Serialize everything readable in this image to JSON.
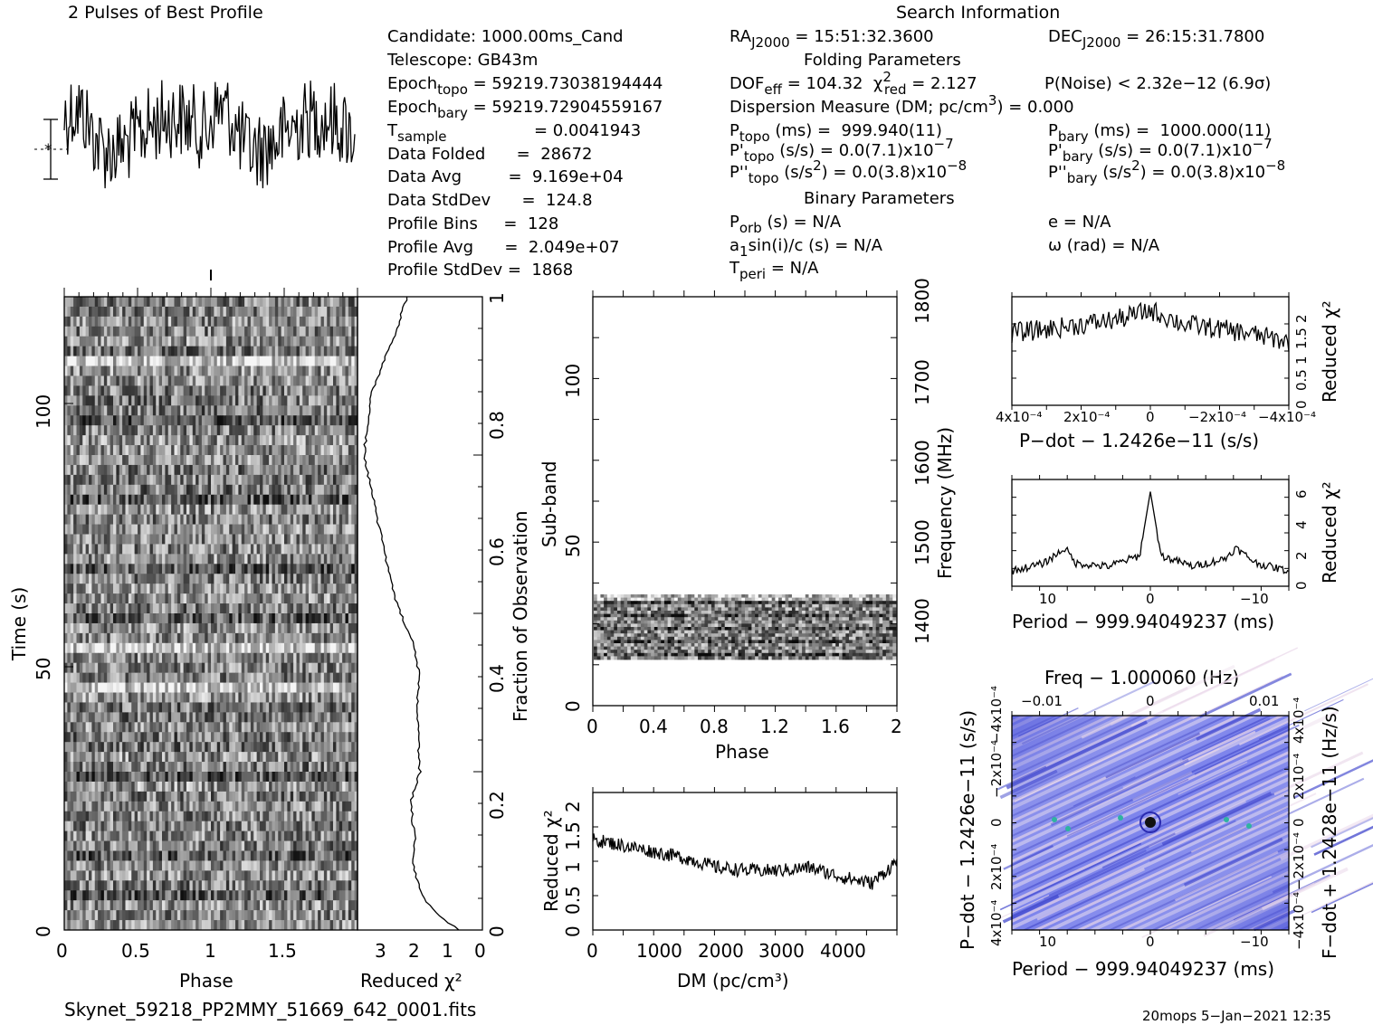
{
  "header": {
    "profile_title": "2 Pulses of Best Profile",
    "search_title": "Search Information",
    "folding_title": "Folding Parameters",
    "binary_title": "Binary Parameters"
  },
  "info": {
    "candidate": "Candidate:  1000.00ms_Cand",
    "telescope": "Telescope:  GB43m",
    "epoch_topo_lbl": "Epoch",
    "epoch_topo_sub": "topo",
    "epoch_topo_val": " = 59219.73038194444",
    "epoch_bary_lbl": "Epoch",
    "epoch_bary_sub": "bary",
    "epoch_bary_val": " = 59219.72904559167",
    "tsample_lbl": "T",
    "tsample_sub": "sample",
    "tsample_val": "=  0.0041943",
    "data_folded": "Data Folded      =  28672",
    "data_avg": "Data Avg         =  9.169e+04",
    "data_std": "Data StdDev      =  124.8",
    "profile_bins": "Profile Bins     =  128",
    "profile_avg": "Profile Avg      =  2.049e+07",
    "profile_std": "Profile StdDev =  1868",
    "ra_lbl": "RA",
    "ra_sub": "J2000",
    "ra_val": " = 15:51:32.3600",
    "dec_lbl": "DEC",
    "dec_sub": "J2000",
    "dec_val": " = 26:15:31.7800",
    "dof": "DOF",
    "dof_sub": "eff",
    "dof_val": " = 104.32  ",
    "chi": "χ",
    "chi_sup": "2",
    "chi_sub": "red",
    "chi_val": " = 2.127",
    "pnoise": "P(Noise) < 2.32e−12  (6.9σ)",
    "dm_line": "Dispersion Measure (DM; pc/cm",
    "dm_sup": "3",
    "dm_val": ") = 0.000",
    "ptopo_lbl": "P",
    "ptopo_sub": "topo",
    "ptopo_val": " (ms) =  999.940(11)",
    "pbary_lbl": "P",
    "pbary_sub": "bary",
    "pbary_val": " (ms) =  1000.000(11)",
    "pdtopo_lbl": "P'",
    "pdtopo_sub": "topo",
    "pdtopo_val": " (s/s) = 0.0(7.1)x10",
    "pdtopo_exp": "−7",
    "pdbary_lbl": "P'",
    "pdbary_sub": "bary",
    "pdbary_val": " (s/s) = 0.0(7.1)x10",
    "pdbary_exp": "−7",
    "pddtopo_lbl": "P''",
    "pddtopo_sub": "topo",
    "pddtopo_val": " (s/s",
    "pddtopo_sq": "2",
    "pddtopo_val2": ") = 0.0(3.8)x10",
    "pddtopo_exp": "−8",
    "pddbary_lbl": "P''",
    "pddbary_sub": "bary",
    "pddbary_val": " (s/s",
    "pddbary_sq": "2",
    "pddbary_val2": ") = 0.0(3.8)x10",
    "pddbary_exp": "−8",
    "porb_lbl": "P",
    "porb_sub": "orb",
    "porb_val": " (s) = N/A",
    "ecc": "e = N/A",
    "a1_lbl": "a",
    "a1_sub": "1",
    "a1_val": "sin(i)/c (s) = N/A",
    "omega": "ω (rad) = N/A",
    "tperi_lbl": "T",
    "tperi_sub": "peri",
    "tperi_val": " = N/A"
  },
  "footer": {
    "filename": "Skynet_59218_PP2MMY_51669_642_0001.fits",
    "stamp": "20mops  5−Jan−2021 12:35"
  },
  "colors": {
    "ink": "#000000",
    "ppdot_base": "#6f75e8",
    "ppdot_light": "#e6d8ea"
  },
  "chart_data": [
    {
      "id": "profile",
      "type": "line",
      "title": "2 Pulses of Best Profile",
      "xlabel": "",
      "ylabel": "",
      "x_range": [
        0,
        2
      ],
      "n_bins": 128,
      "peaks_phase": [
        0.05,
        0.55
      ]
    },
    {
      "id": "time-phase",
      "type": "heatmap",
      "xlabel": "Phase",
      "ylabel": "Time (s)",
      "x_ticks": [
        "0",
        "0.5",
        "1",
        "1.5"
      ],
      "y_ticks": [
        "0",
        "50",
        "100"
      ],
      "xlim": [
        0,
        2
      ],
      "ylim": [
        0,
        120
      ],
      "right_ylabel": "Fraction of Observation",
      "right_ticks": [
        "0",
        "0.2",
        "0.4",
        "0.6",
        "0.8",
        "1"
      ]
    },
    {
      "id": "time-chi",
      "type": "line",
      "xlabel": "Reduced χ²",
      "x_ticks": [
        "3",
        "2",
        "1",
        "0"
      ],
      "xlim": [
        3.8,
        0
      ],
      "y": [
        0,
        0.02,
        0.05,
        0.1,
        0.15,
        0.2,
        0.25,
        0.3,
        0.35,
        0.4,
        0.45,
        0.5,
        0.55,
        0.6,
        0.65,
        0.7,
        0.75,
        0.8,
        0.85,
        0.9,
        0.95,
        1.0
      ],
      "x": [
        0.7,
        1.3,
        1.8,
        2.1,
        2.05,
        2.2,
        1.9,
        1.95,
        2.0,
        1.9,
        2.1,
        2.5,
        2.8,
        3.0,
        3.2,
        3.4,
        3.6,
        3.5,
        3.35,
        3.0,
        2.6,
        2.3
      ]
    },
    {
      "id": "subband-phase",
      "type": "heatmap",
      "xlabel": "Phase",
      "ylabel": "Sub-band",
      "x_ticks": [
        "0",
        "0.4",
        "0.8",
        "1.2",
        "1.6",
        "2"
      ],
      "y_ticks": [
        "0",
        "50",
        "100"
      ],
      "xlim": [
        0,
        2
      ],
      "ylim": [
        0,
        128
      ],
      "filled_subbands": [
        14,
        35
      ],
      "right_ylabel": "Frequency (MHz)",
      "right_ticks": [
        "1400",
        "1500",
        "1600",
        "1700",
        "1800"
      ]
    },
    {
      "id": "dm-chi",
      "type": "line",
      "xlabel": "DM (pc/cm³)",
      "ylabel": "Reduced χ²",
      "x_ticks": [
        "0",
        "1000",
        "2000",
        "3000",
        "4000"
      ],
      "y_ticks": [
        "0",
        "0.5",
        "1",
        "1.5",
        "2"
      ],
      "xlim": [
        0,
        4900
      ],
      "ylim": [
        0,
        2.2
      ],
      "x": [
        0,
        500,
        1000,
        1500,
        2000,
        2500,
        3000,
        3500,
        4000,
        4500,
        4900
      ],
      "y": [
        1.45,
        1.35,
        1.25,
        1.15,
        1.0,
        0.95,
        0.95,
        1.0,
        0.85,
        0.75,
        1.1
      ]
    },
    {
      "id": "pdot-chi",
      "type": "line",
      "xlabel": "P−dot − 1.2426e−11 (s/s)",
      "ylabel": "Reduced χ²",
      "x_ticks": [
        "4x10⁻⁴",
        "2x10⁻⁴",
        "0",
        "−2x10⁻⁴",
        "−4x10⁻⁴"
      ],
      "y_ticks": [
        "0",
        "0.5",
        "1",
        "1.5",
        "2"
      ],
      "xlim": [
        0.00043,
        -0.00043
      ],
      "ylim": [
        0,
        2.4
      ],
      "x": [
        0.00043,
        0.0003,
        0.0002,
        0.0001,
        0,
        -0.0001,
        -0.0002,
        -0.0003,
        -0.00043
      ],
      "y": [
        1.6,
        1.7,
        1.8,
        1.9,
        2.1,
        1.8,
        1.7,
        1.6,
        1.4
      ]
    },
    {
      "id": "period-chi",
      "type": "line",
      "xlabel": "Period − 999.94049237 (ms)",
      "ylabel": "Reduced χ²",
      "x_ticks": [
        "10",
        "0",
        "−10"
      ],
      "y_ticks": [
        "0",
        "2",
        "4",
        "6"
      ],
      "xlim": [
        13,
        -13
      ],
      "ylim": [
        0,
        7
      ],
      "x": [
        13,
        10,
        9,
        8,
        7,
        4,
        1,
        0,
        -1,
        -4,
        -7,
        -8,
        -9,
        -10,
        -13
      ],
      "y": [
        1.0,
        1.5,
        2.0,
        2.5,
        1.5,
        1.3,
        2.0,
        6.2,
        2.0,
        1.3,
        1.8,
        2.5,
        2.0,
        1.5,
        1.0
      ]
    },
    {
      "id": "p-pdot",
      "type": "heatmap",
      "title": "Freq − 1.000060 (Hz)",
      "xlabel": "Period − 999.94049237 (ms)",
      "ylabel": "P−dot − 1.2426e−11 (s/s)",
      "right_ylabel": "F−dot + 1.2428e−11 (Hz/s)",
      "x_ticks": [
        "10",
        "0",
        "−10"
      ],
      "top_ticks": [
        "−0.01",
        "0",
        "0.01"
      ],
      "y_ticks": [
        "4x10⁻⁴",
        "2x10⁻⁴",
        "0",
        "−2x10⁻⁴",
        "−4x10⁻⁴"
      ],
      "right_ticks": [
        "−4x10⁻⁴",
        "−2x10⁻⁴",
        "0",
        "2x10⁻⁴",
        "4x10⁻⁴"
      ]
    }
  ]
}
